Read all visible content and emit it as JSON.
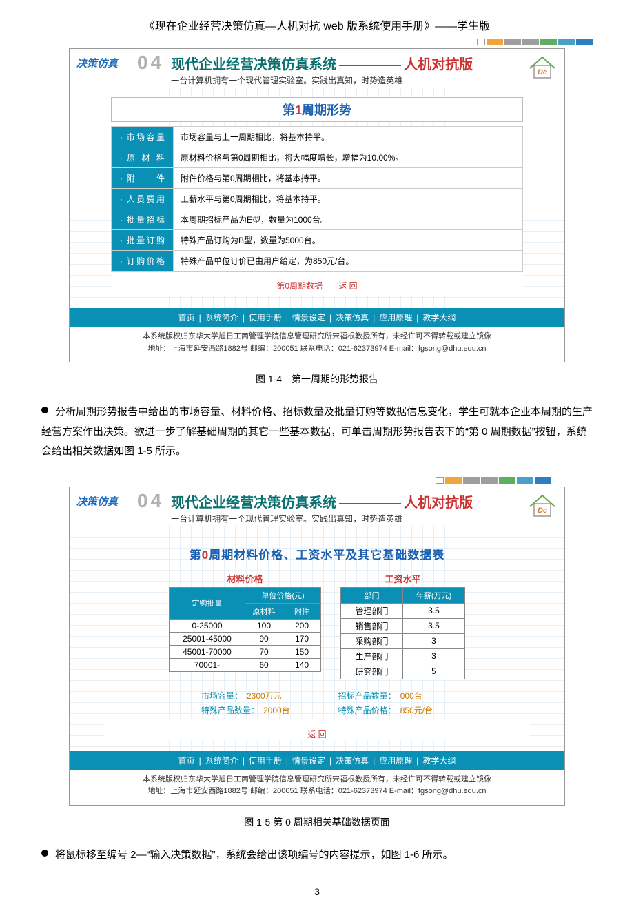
{
  "header_title": "《现在企业经营决策仿真—人机对抗 web 版系统使用手册》——学生版",
  "color_bar": [
    "#f2a33a",
    "#9e9e9e",
    "#9e9e9e",
    "#5fae5f",
    "#4aa0c8",
    "#2e7fbf"
  ],
  "ss_logo": "决策仿真",
  "ss_04": "04",
  "ss_title_pre": "现代企业经营决策仿真系统",
  "ss_title_suf": "人机对抗版",
  "ss_sub": "一台计算机拥有一个现代管理实验室。实践出真知，时势造英雄",
  "panel1_title_pre": "第",
  "panel1_title_num": "1",
  "panel1_title_suf": "周期形势",
  "rows1": [
    {
      "label": "· 市场容量",
      "text": "市场容量与上一周期相比，将基本持平。"
    },
    {
      "label": "· 原 材 料",
      "text": "原材料价格与第0周期相比，将大幅度增长，增幅为10.00%。"
    },
    {
      "label": "· 附　　件",
      "text": "附件价格与第0周期相比，将基本持平。"
    },
    {
      "label": "· 人员费用",
      "text": "工薪水平与第0周期相比，将基本持平。"
    },
    {
      "label": "· 批量招标",
      "text": "本周期招标产品为E型，数量为1000台。"
    },
    {
      "label": "· 批量订购",
      "text": "特殊产品订购为B型，数量为5000台。"
    },
    {
      "label": "· 订购价格",
      "text": "特殊产品单位订价已由用户给定，为850元/台。"
    }
  ],
  "red_link1": "第0周期数据",
  "red_link2": "返 回",
  "nav_items": [
    "首页",
    "系统简介",
    "使用手册",
    "情景设定",
    "决策仿真",
    "应用原理",
    "教学大纲"
  ],
  "copyright1": "本系统版权归东华大学旭日工商管理学院信息管理研究所宋福根教授所有，未经许可不得转载或建立镜像",
  "copyright2": "地址：上海市延安西路1882号 邮编：200051 联系电话：021-62373974 E-mail：fgsong@dhu.edu.cn",
  "caption1": "图 1-4　第一周期的形势报告",
  "para1": "分析周期形势报告中给出的市场容量、材料价格、招标数量及批量订购等数据信息变化，学生可就本企业本周期的生产经营方案作出决策。欲进一步了解基础周期的其它一些基本数据，可单击周期形势报告表下的“第 0 周期数据”按钮，系统会给出相关数据如图 1-5 所示。",
  "panel2_title": "第0周期材料价格、工资水平及其它基础数据表",
  "mat_title": "材料价格",
  "sal_title": "工资水平",
  "mat_headers": [
    "定购批量",
    "单位价格(元)"
  ],
  "mat_sub": [
    "原材料",
    "附件"
  ],
  "mat_rows": [
    [
      "0-25000",
      "100",
      "200"
    ],
    [
      "25001-45000",
      "90",
      "170"
    ],
    [
      "45001-70000",
      "70",
      "150"
    ],
    [
      "70001-",
      "60",
      "140"
    ]
  ],
  "sal_headers": [
    "部门",
    "年薪(万元)"
  ],
  "sal_rows": [
    [
      "管理部门",
      "3.5"
    ],
    [
      "销售部门",
      "3.5"
    ],
    [
      "采购部门",
      "3"
    ],
    [
      "生产部门",
      "3"
    ],
    [
      "研究部门",
      "5"
    ]
  ],
  "stats_left": [
    {
      "k": "市场容量：",
      "v": "2300万元"
    },
    {
      "k": "特殊产品数量：",
      "v": "2000台"
    }
  ],
  "stats_right": [
    {
      "k": "招标产品数量：",
      "v": "000台"
    },
    {
      "k": "特殊产品价格：",
      "v": "850元/台"
    }
  ],
  "caption2": "图 1-5 第 0 周期相关基础数据页面",
  "para2": "将鼠标移至编号 2—“输入决策数据”，系统会给出该项编号的内容提示，如图 1-6 所示。",
  "page_num": "3"
}
